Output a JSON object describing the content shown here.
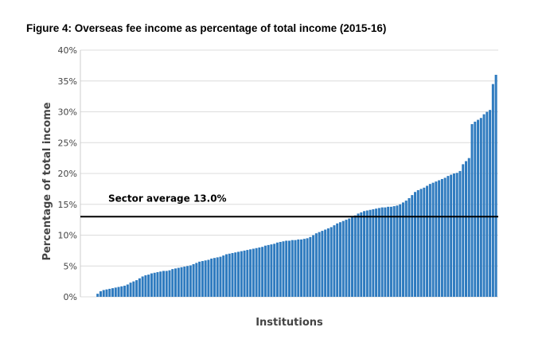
{
  "chart_data": {
    "type": "bar",
    "title": "Figure 4: Overseas fee income as percentage of total income (2015-16)",
    "xlabel": "Institutions",
    "ylabel": "Percentage of total income",
    "ylim": [
      0,
      40
    ],
    "yticks": [
      "0%",
      "5%",
      "10%",
      "15%",
      "20%",
      "25%",
      "30%",
      "35%",
      "40%"
    ],
    "grid": true,
    "bar_color": "#2f7bbf",
    "reference_line": {
      "value": 13.0,
      "label": "Sector average 13.0%",
      "color": "#000000"
    },
    "series": [
      {
        "values": [
          0,
          0,
          0,
          0,
          0,
          0.5,
          0.9,
          1.1,
          1.2,
          1.3,
          1.4,
          1.5,
          1.6,
          1.7,
          1.8,
          2.0,
          2.3,
          2.5,
          2.7,
          3.0,
          3.3,
          3.5,
          3.6,
          3.8,
          3.9,
          4.0,
          4.1,
          4.2,
          4.2,
          4.3,
          4.5,
          4.6,
          4.7,
          4.8,
          4.9,
          5.0,
          5.1,
          5.3,
          5.5,
          5.7,
          5.8,
          5.9,
          6.0,
          6.2,
          6.3,
          6.4,
          6.5,
          6.7,
          6.9,
          7.0,
          7.1,
          7.2,
          7.3,
          7.4,
          7.5,
          7.6,
          7.7,
          7.8,
          7.9,
          8.0,
          8.1,
          8.3,
          8.4,
          8.5,
          8.6,
          8.8,
          8.9,
          9.0,
          9.1,
          9.1,
          9.2,
          9.2,
          9.3,
          9.3,
          9.4,
          9.5,
          9.7,
          10.0,
          10.3,
          10.5,
          10.7,
          10.9,
          11.1,
          11.3,
          11.6,
          11.9,
          12.1,
          12.3,
          12.5,
          12.7,
          12.9,
          13.2,
          13.5,
          13.7,
          13.9,
          14.0,
          14.1,
          14.2,
          14.3,
          14.4,
          14.5,
          14.5,
          14.6,
          14.6,
          14.7,
          14.8,
          15.0,
          15.3,
          15.6,
          16.0,
          16.5,
          17.0,
          17.3,
          17.5,
          17.7,
          18.0,
          18.3,
          18.5,
          18.7,
          18.9,
          19.1,
          19.3,
          19.6,
          19.8,
          20.0,
          20.1,
          20.4,
          21.5,
          22.0,
          22.5,
          28.0,
          28.4,
          28.7,
          29.0,
          29.6,
          30.0,
          30.3,
          34.5,
          36.0
        ]
      }
    ]
  }
}
